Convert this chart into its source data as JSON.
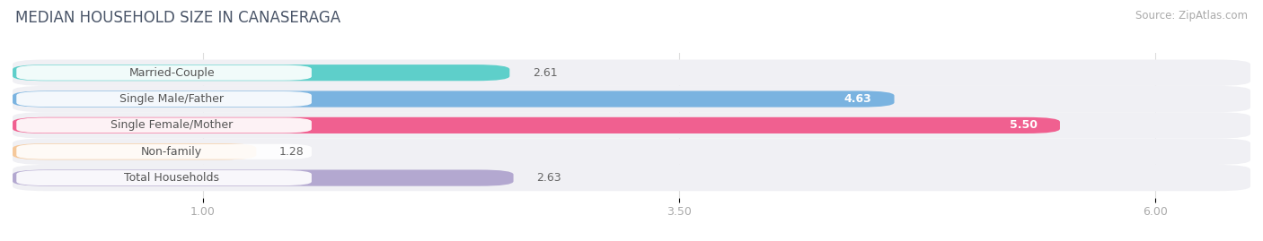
{
  "title": "MEDIAN HOUSEHOLD SIZE IN CANASERAGA",
  "source": "Source: ZipAtlas.com",
  "categories": [
    "Married-Couple",
    "Single Male/Father",
    "Single Female/Mother",
    "Non-family",
    "Total Households"
  ],
  "values": [
    2.61,
    4.63,
    5.5,
    1.28,
    2.63
  ],
  "bar_colors": [
    "#5ecfca",
    "#7ab3e0",
    "#f06090",
    "#f5c89a",
    "#b3a8d0"
  ],
  "xlim_data_min": 0.0,
  "xlim_data_max": 6.5,
  "xticks": [
    1.0,
    3.5,
    6.0
  ],
  "xtick_labels": [
    "1.00",
    "3.50",
    "6.00"
  ],
  "background_color": "#ffffff",
  "row_bg_color": "#f0f0f4",
  "label_bg_color": "#ffffff",
  "title_fontsize": 12,
  "label_fontsize": 9,
  "value_fontsize": 9,
  "source_fontsize": 8.5,
  "title_color": "#4a5568",
  "label_color": "#555555",
  "value_color_inside": "#ffffff",
  "value_color_outside": "#666666",
  "tick_color": "#aaaaaa"
}
